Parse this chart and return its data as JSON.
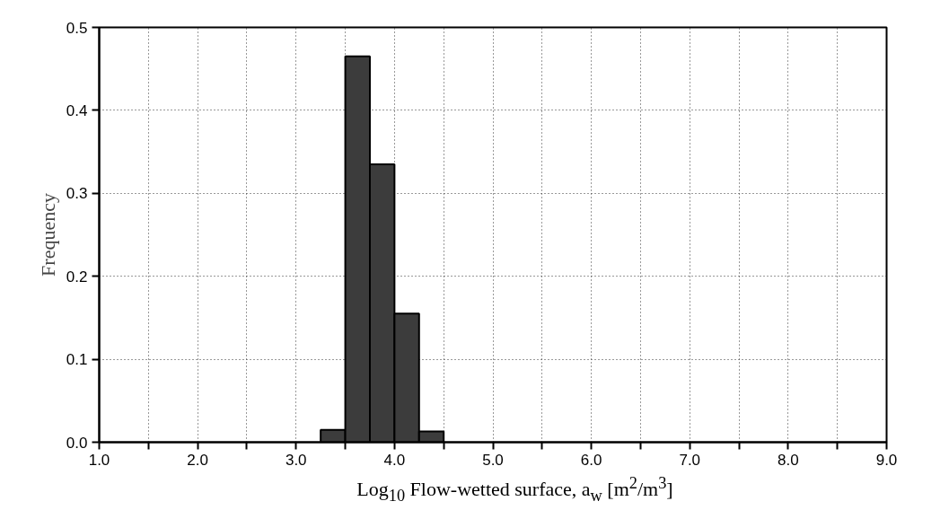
{
  "chart_data": {
    "type": "histogram",
    "xlabel": "Log$_{10}$ Flow-wetted surface, a$_{w}$ [m$^{2}$/m$^{3}$]",
    "ylabel": "Frequency",
    "bins": [
      3.25,
      3.5,
      3.75,
      4.0,
      4.25,
      4.5
    ],
    "values": [
      0.015,
      0.465,
      0.335,
      0.155,
      0.013
    ],
    "color": "#3c3c3c",
    "xlim": [
      1.0,
      9.0
    ],
    "ylim": [
      0.0,
      0.5
    ],
    "xticks": [
      {
        "value": 1.0,
        "label": "1.0"
      },
      {
        "value": 1.5,
        "label": null
      },
      {
        "value": 2.0,
        "label": "2.0"
      },
      {
        "value": 2.5,
        "label": null
      },
      {
        "value": 3.0,
        "label": "3.0"
      },
      {
        "value": 3.5,
        "label": null
      },
      {
        "value": 4.0,
        "label": "4.0"
      },
      {
        "value": 4.5,
        "label": null
      },
      {
        "value": 5.0,
        "label": "5.0"
      },
      {
        "value": 5.5,
        "label": null
      },
      {
        "value": 6.0,
        "label": "6.0"
      },
      {
        "value": 6.5,
        "label": null
      },
      {
        "value": 7.0,
        "label": "7.0"
      },
      {
        "value": 7.5,
        "label": null
      },
      {
        "value": 8.0,
        "label": "8.0"
      },
      {
        "value": 8.5,
        "label": null
      },
      {
        "value": 9.0,
        "label": "9.0"
      }
    ],
    "yticks": [
      {
        "value": 0.0,
        "label": "0.0"
      },
      0.1,
      0.2,
      0.3,
      0.4,
      0.5
    ],
    "grid": true
  }
}
